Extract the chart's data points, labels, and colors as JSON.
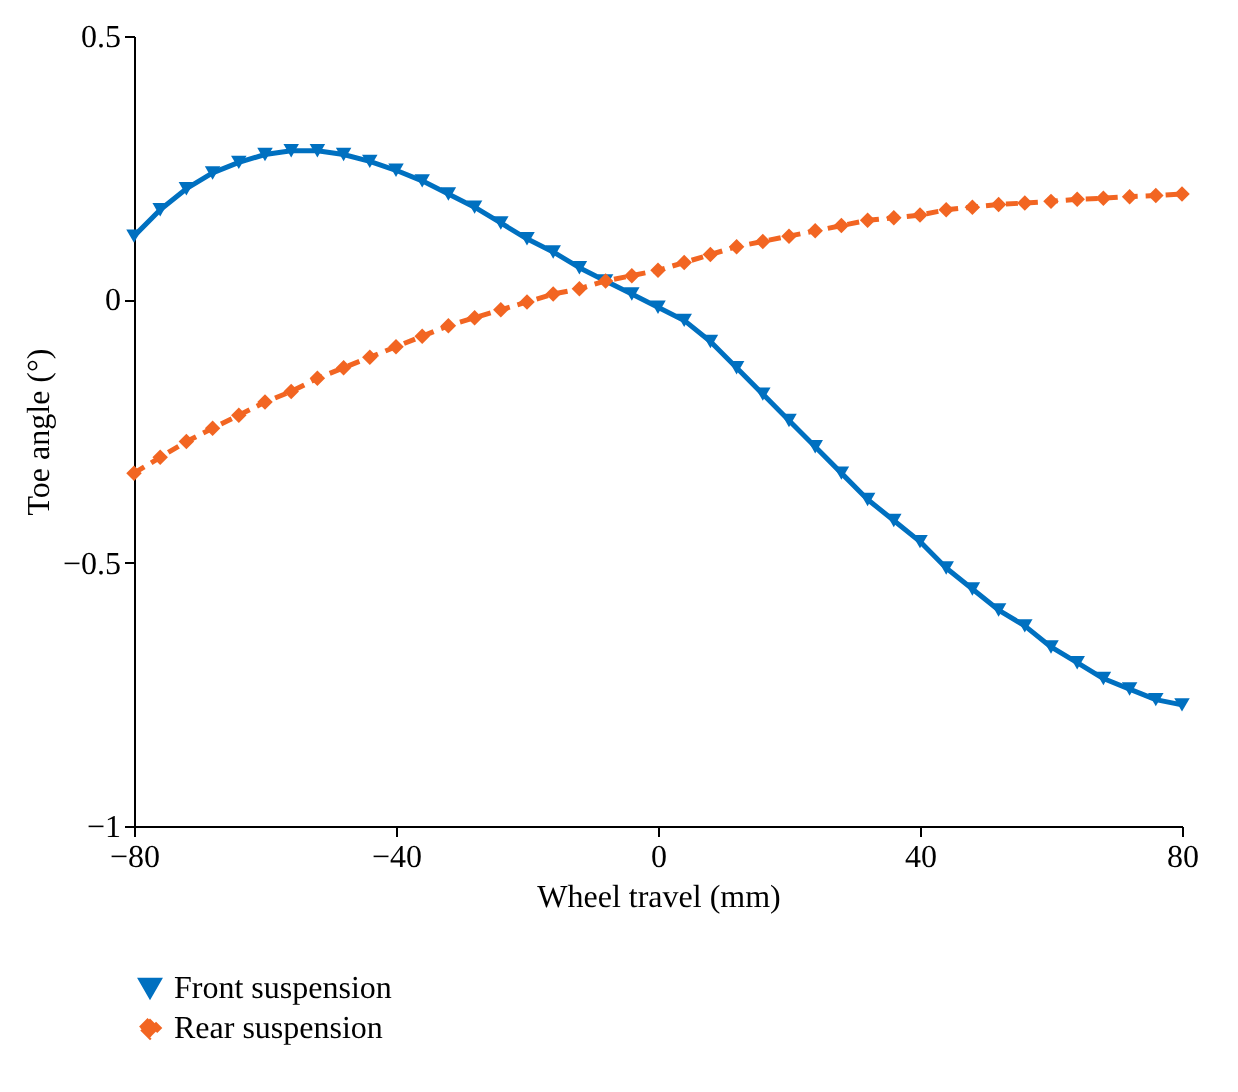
{
  "chart_data": {
    "type": "line",
    "xlabel": "Wheel travel (mm)",
    "ylabel": "Toe angle (°)",
    "x": [
      -80,
      -76,
      -72,
      -68,
      -64,
      -60,
      -56,
      -52,
      -48,
      -44,
      -40,
      -36,
      -32,
      -28,
      -24,
      -20,
      -16,
      -12,
      -8,
      -4,
      0,
      4,
      8,
      12,
      16,
      20,
      24,
      28,
      32,
      36,
      40,
      44,
      48,
      52,
      56,
      60,
      64,
      68,
      72,
      76,
      80
    ],
    "series": [
      {
        "name": "Front suspension",
        "color": "#0070c0",
        "marker": "triangle",
        "line_style": "solid",
        "values": [
          0.12,
          0.17,
          0.21,
          0.24,
          0.26,
          0.275,
          0.282,
          0.282,
          0.275,
          0.262,
          0.245,
          0.225,
          0.2,
          0.175,
          0.145,
          0.115,
          0.09,
          0.06,
          0.035,
          0.01,
          -0.015,
          -0.04,
          -0.08,
          -0.13,
          -0.18,
          -0.23,
          -0.28,
          -0.33,
          -0.38,
          -0.42,
          -0.46,
          -0.51,
          -0.55,
          -0.59,
          -0.62,
          -0.66,
          -0.69,
          -0.72,
          -0.74,
          -0.76,
          -0.77
        ]
      },
      {
        "name": "Rear suspension",
        "color": "#f26522",
        "marker": "diamond",
        "line_style": "dashed",
        "values": [
          -0.33,
          -0.3,
          -0.27,
          -0.245,
          -0.22,
          -0.195,
          -0.175,
          -0.15,
          -0.13,
          -0.11,
          -0.09,
          -0.07,
          -0.05,
          -0.035,
          -0.02,
          -0.005,
          0.01,
          0.02,
          0.035,
          0.045,
          0.055,
          0.07,
          0.085,
          0.1,
          0.11,
          0.12,
          0.13,
          0.14,
          0.15,
          0.155,
          0.16,
          0.17,
          0.175,
          0.18,
          0.183,
          0.186,
          0.19,
          0.192,
          0.195,
          0.197,
          0.2
        ]
      }
    ],
    "xlim": [
      -80,
      80
    ],
    "xticks": [
      -80,
      -40,
      0,
      40,
      80
    ],
    "ylim": [
      -1,
      0.5
    ],
    "yticks": [
      -1,
      -0.5,
      0,
      0.5
    ],
    "grid": false,
    "legend": "bottom left"
  }
}
